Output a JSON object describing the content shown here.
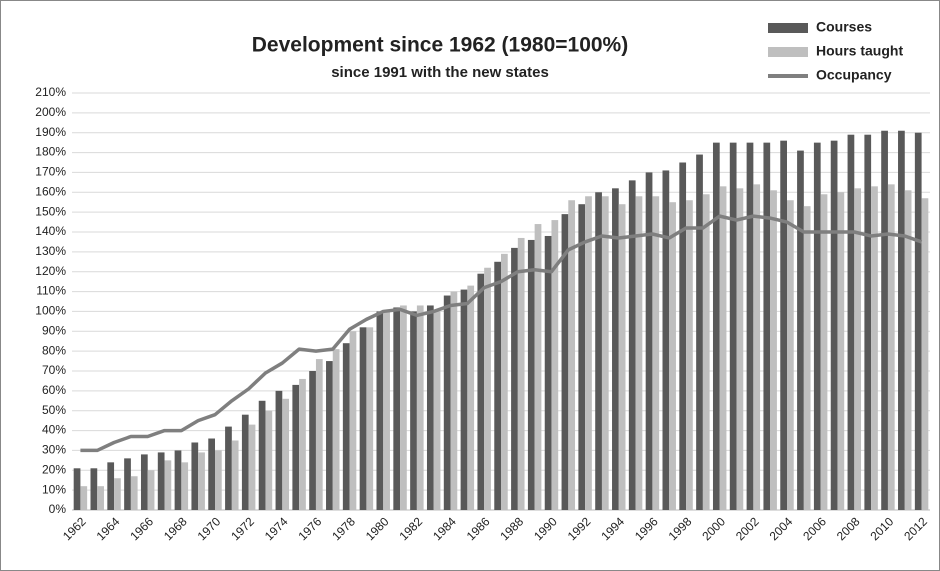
{
  "chart_data": {
    "type": "bar",
    "title": "Development since 1962 (1980=100%)",
    "subtitle": "since 1991 with the new states",
    "categories": [
      "1962",
      null,
      "1964",
      null,
      "1966",
      null,
      "1968",
      null,
      "1970",
      null,
      "1972",
      null,
      "1974",
      null,
      "1976",
      null,
      "1978",
      null,
      "1980",
      null,
      "1982",
      null,
      "1984",
      null,
      "1986",
      null,
      "1988",
      null,
      "1990",
      null,
      "1992",
      null,
      "1994",
      null,
      "1996",
      null,
      "1998",
      null,
      "2000",
      null,
      "2002",
      null,
      "2004",
      null,
      "2006",
      null,
      "2008",
      null,
      "2010",
      null,
      "2012"
    ],
    "series": [
      {
        "name": "Courses",
        "type": "bar",
        "color": "#595959",
        "values": [
          21,
          21,
          24,
          26,
          28,
          29,
          30,
          34,
          36,
          42,
          48,
          55,
          60,
          63,
          70,
          75,
          84,
          92,
          100,
          102,
          100,
          103,
          108,
          111,
          119,
          125,
          132,
          136,
          138,
          149,
          154,
          160,
          162,
          166,
          170,
          171,
          175,
          179,
          185,
          185,
          185,
          185,
          186,
          181,
          185,
          186,
          189,
          189,
          191,
          191,
          190
        ]
      },
      {
        "name": "Hours taught",
        "type": "bar",
        "color": "#bfbfbf",
        "values": [
          12,
          12,
          16,
          17,
          20,
          25,
          24,
          29,
          30,
          35,
          43,
          50,
          56,
          66,
          76,
          81,
          90,
          92,
          100,
          103,
          103,
          100,
          110,
          113,
          122,
          129,
          137,
          144,
          146,
          156,
          158,
          158,
          154,
          158,
          158,
          155,
          156,
          159,
          163,
          162,
          164,
          161,
          156,
          153,
          159,
          160,
          162,
          163,
          164,
          161,
          157
        ]
      },
      {
        "name": "Occupancy",
        "type": "line",
        "color": "#7f7f7f",
        "values": [
          30,
          30,
          34,
          37,
          37,
          40,
          40,
          45,
          48,
          55,
          61,
          69,
          74,
          81,
          80,
          81,
          91,
          96,
          100,
          101,
          98,
          100,
          103,
          104,
          112,
          115,
          120,
          121,
          120,
          131,
          135,
          138,
          137,
          138,
          139,
          137,
          142,
          142,
          148,
          146,
          148,
          147,
          145,
          140,
          140,
          140,
          140,
          138,
          139,
          138,
          135
        ]
      }
    ],
    "ylim": [
      0,
      210
    ],
    "yticks": [
      {
        "value": 0,
        "label": "0%"
      },
      {
        "value": 10,
        "label": "10%"
      },
      {
        "value": 20,
        "label": "20%"
      },
      {
        "value": 30,
        "label": "30%"
      },
      {
        "value": 40,
        "label": "40%"
      },
      {
        "value": 50,
        "label": "50%"
      },
      {
        "value": 60,
        "label": "60%"
      },
      {
        "value": 70,
        "label": "70%"
      },
      {
        "value": 80,
        "label": "80%"
      },
      {
        "value": 90,
        "label": "90%"
      },
      {
        "value": 100,
        "label": "100%"
      },
      {
        "value": 110,
        "label": "110%"
      },
      {
        "value": 120,
        "label": "120%"
      },
      {
        "value": 130,
        "label": "130%"
      },
      {
        "value": 140,
        "label": "140%"
      },
      {
        "value": 150,
        "label": "150%"
      },
      {
        "value": 160,
        "label": "160%"
      },
      {
        "value": 170,
        "label": "170%"
      },
      {
        "value": 180,
        "label": "180%"
      },
      {
        "value": 190,
        "label": "190%"
      },
      {
        "value": 200,
        "label": "200%"
      },
      {
        "value": 210,
        "label": "210%"
      }
    ],
    "grid": true,
    "legend": "top-right"
  }
}
